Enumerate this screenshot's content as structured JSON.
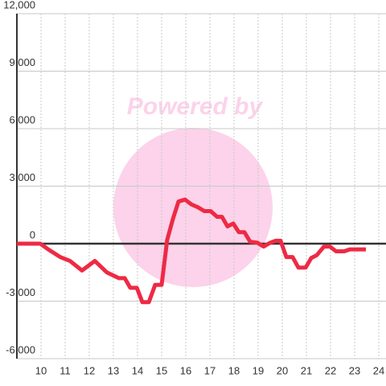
{
  "chart_data": {
    "type": "line",
    "watermark": "Powered by",
    "x": [
      9.0,
      9.97,
      10.3,
      10.8,
      11.2,
      11.7,
      12.23,
      12.73,
      13.23,
      13.47,
      13.7,
      13.97,
      14.2,
      14.47,
      14.73,
      15.0,
      15.23,
      15.47,
      15.7,
      15.97,
      16.23,
      16.5,
      16.77,
      17.03,
      17.3,
      17.5,
      17.73,
      17.97,
      18.2,
      18.43,
      18.67,
      18.97,
      19.23,
      19.5,
      19.73,
      19.93,
      20.17,
      20.43,
      20.67,
      20.97,
      21.2,
      21.43,
      21.73,
      21.97,
      22.23,
      22.57,
      22.8,
      23.47
    ],
    "series": [
      {
        "color": "#ee2a44",
        "values": [
          0,
          0,
          -300,
          -700,
          -900,
          -1400,
          -900,
          -1500,
          -1800,
          -1800,
          -2300,
          -2300,
          -3050,
          -3050,
          -2150,
          -2150,
          200,
          1300,
          2200,
          2300,
          2050,
          1900,
          1700,
          1700,
          1400,
          1400,
          900,
          1050,
          600,
          600,
          100,
          50,
          -150,
          50,
          150,
          150,
          -700,
          -700,
          -1250,
          -1250,
          -750,
          -600,
          -150,
          -150,
          -400,
          -400,
          -300,
          -300
        ]
      }
    ],
    "xlim": [
      9,
      24.3
    ],
    "xticks": [
      10,
      11,
      12,
      13,
      14,
      15,
      16,
      17,
      18,
      19,
      20,
      21,
      22,
      23,
      24
    ],
    "ylim": [
      -6000,
      12000
    ],
    "yticks": [
      {
        "value": -6000,
        "label": "-6,000"
      },
      {
        "value": -3000,
        "label": "-3,000"
      },
      0,
      {
        "value": 3000,
        "label": "3,000"
      },
      {
        "value": 6000,
        "label": "6,000"
      },
      {
        "value": 9000,
        "label": "9,000"
      },
      {
        "value": 12000,
        "label": "12,000"
      }
    ],
    "grid": true
  }
}
